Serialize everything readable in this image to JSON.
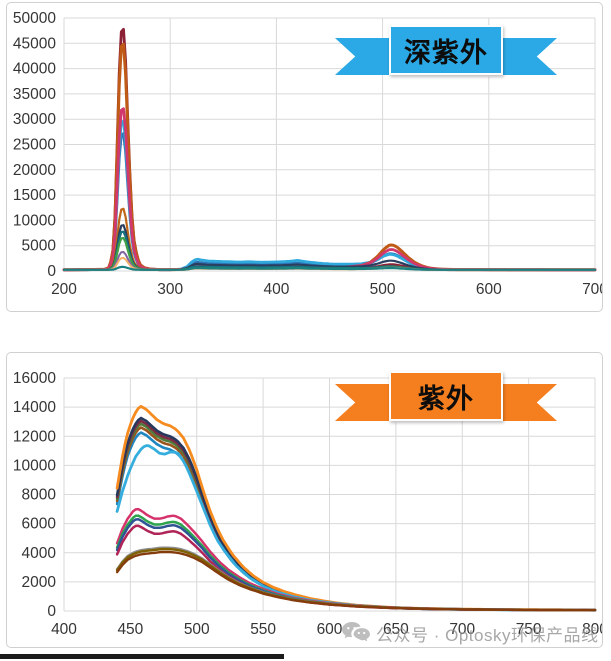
{
  "watermark": {
    "icon": "wechat-icon",
    "text": "公众号 · Optosky环保产品线"
  },
  "chart_data": [
    {
      "type": "line",
      "title": "深紫外",
      "banner": {
        "label": "深紫外",
        "color": "#2BA9E6"
      },
      "xlim": [
        200,
        700
      ],
      "ylim": [
        0,
        50000
      ],
      "xticks": [
        200,
        300,
        400,
        500,
        600,
        700
      ],
      "yticks": [
        0,
        5000,
        10000,
        15000,
        20000,
        25000,
        30000,
        35000,
        40000,
        45000,
        50000
      ],
      "grid": true,
      "legend": "none",
      "xstart": 200,
      "baseline": 230,
      "profiles": {
        "main": [
          [
            200,
            0
          ],
          [
            238,
            0.002
          ],
          [
            243,
            0.01
          ],
          [
            246,
            0.08
          ],
          [
            248,
            0.22
          ],
          [
            250,
            0.5
          ],
          [
            252,
            0.8
          ],
          [
            254,
            0.97
          ],
          [
            255,
            1
          ],
          [
            256,
            0.98
          ],
          [
            258,
            0.85
          ],
          [
            260,
            0.62
          ],
          [
            262,
            0.4
          ],
          [
            264,
            0.22
          ],
          [
            266,
            0.12
          ],
          [
            269,
            0.05
          ],
          [
            272,
            0.02
          ],
          [
            276,
            0.008
          ],
          [
            282,
            0.003
          ],
          [
            290,
            0.001
          ],
          [
            700,
            0
          ]
        ],
        "mid": [
          [
            300,
            0
          ],
          [
            310,
            0.05
          ],
          [
            316,
            0.3
          ],
          [
            321,
            0.8
          ],
          [
            325,
            1
          ],
          [
            330,
            0.9
          ],
          [
            336,
            0.82
          ],
          [
            345,
            0.78
          ],
          [
            355,
            0.75
          ],
          [
            365,
            0.72
          ],
          [
            375,
            0.75
          ],
          [
            385,
            0.7
          ],
          [
            395,
            0.72
          ],
          [
            405,
            0.75
          ],
          [
            413,
            0.8
          ],
          [
            420,
            0.88
          ],
          [
            425,
            0.8
          ],
          [
            432,
            0.7
          ],
          [
            440,
            0.62
          ],
          [
            450,
            0.55
          ],
          [
            460,
            0.5
          ],
          [
            470,
            0.45
          ],
          [
            480,
            0.42
          ],
          [
            490,
            0.4
          ],
          [
            500,
            0.35
          ],
          [
            510,
            0.25
          ],
          [
            520,
            0.15
          ],
          [
            535,
            0.06
          ],
          [
            550,
            0.02
          ],
          [
            700,
            0
          ]
        ],
        "tail": [
          [
            455,
            0
          ],
          [
            470,
            0.06
          ],
          [
            480,
            0.12
          ],
          [
            488,
            0.25
          ],
          [
            495,
            0.5
          ],
          [
            501,
            0.8
          ],
          [
            506,
            0.97
          ],
          [
            509,
            1
          ],
          [
            513,
            0.93
          ],
          [
            518,
            0.75
          ],
          [
            524,
            0.5
          ],
          [
            530,
            0.3
          ],
          [
            537,
            0.15
          ],
          [
            545,
            0.06
          ],
          [
            555,
            0.02
          ],
          [
            570,
            0.005
          ],
          [
            700,
            0
          ]
        ]
      },
      "series": [
        {
          "name": "steel-blue",
          "color": "#2E75B6",
          "width": 2.8,
          "components": {
            "main": 27500,
            "mid": 1500,
            "tail": 2800
          }
        },
        {
          "name": "cyan",
          "color": "#2FA8DC",
          "width": 2.8,
          "components": {
            "main": 30000,
            "mid": 2100,
            "tail": 2500
          }
        },
        {
          "name": "maroon",
          "color": "#8C2035",
          "width": 2.8,
          "components": {
            "main": 48500,
            "mid": 400,
            "tail": 900
          }
        },
        {
          "name": "brown-orange",
          "color": "#BF5B17",
          "width": 3.0,
          "components": {
            "main": 45500,
            "mid": 500,
            "tail": 4800
          }
        },
        {
          "name": "crimson",
          "color": "#D1386C",
          "width": 2.8,
          "components": {
            "main": 32500,
            "mid": 900,
            "tail": 3800
          }
        },
        {
          "name": "orange-mid",
          "color": "#C0681A",
          "width": 2.2,
          "components": {
            "main": 12300,
            "mid": 400,
            "tail": 600
          }
        },
        {
          "name": "dark-navy",
          "color": "#2A3F5F",
          "width": 2.2,
          "components": {
            "main": 9000,
            "mid": 1200,
            "tail": 1500
          }
        },
        {
          "name": "teal",
          "color": "#17707E",
          "width": 2.2,
          "components": {
            "main": 7700,
            "mid": 700,
            "tail": 500
          }
        },
        {
          "name": "green",
          "color": "#3FA047",
          "width": 2.2,
          "components": {
            "main": 6400,
            "mid": 350,
            "tail": 400
          }
        },
        {
          "name": "purple",
          "color": "#8064A2",
          "width": 2.0,
          "components": {
            "main": 3600,
            "mid": 300,
            "tail": 350
          }
        },
        {
          "name": "light-orange",
          "color": "#F6B26B",
          "width": 2.0,
          "components": {
            "main": 2400,
            "mid": 250,
            "tail": 300
          }
        },
        {
          "name": "flat-teal",
          "color": "#1B8080",
          "width": 2.2,
          "components": {
            "main": 600,
            "mid": 350,
            "tail": 250
          }
        }
      ]
    },
    {
      "type": "line",
      "title": "紫外",
      "banner": {
        "label": "紫外",
        "color": "#F57E1E"
      },
      "xlim": [
        400,
        800
      ],
      "ylim": [
        0,
        16000
      ],
      "xticks": [
        400,
        450,
        500,
        550,
        600,
        650,
        700,
        750,
        800
      ],
      "yticks": [
        0,
        2000,
        4000,
        6000,
        8000,
        10000,
        12000,
        14000,
        16000
      ],
      "grid": true,
      "legend": "none",
      "xstart": 440,
      "baseline": 0,
      "profiles": {
        "A": [
          [
            440,
            0.6
          ],
          [
            443,
            0.72
          ],
          [
            447,
            0.85
          ],
          [
            451,
            0.93
          ],
          [
            455,
            0.985
          ],
          [
            458,
            1
          ],
          [
            462,
            0.985
          ],
          [
            466,
            0.96
          ],
          [
            470,
            0.935
          ],
          [
            475,
            0.915
          ],
          [
            480,
            0.905
          ],
          [
            485,
            0.885
          ],
          [
            490,
            0.845
          ],
          [
            495,
            0.78
          ],
          [
            500,
            0.69
          ],
          [
            505,
            0.585
          ],
          [
            510,
            0.49
          ],
          [
            515,
            0.41
          ],
          [
            520,
            0.345
          ],
          [
            527,
            0.275
          ],
          [
            535,
            0.215
          ],
          [
            543,
            0.17
          ],
          [
            550,
            0.14
          ],
          [
            558,
            0.115
          ],
          [
            566,
            0.095
          ],
          [
            575,
            0.078
          ],
          [
            585,
            0.062
          ],
          [
            595,
            0.05
          ],
          [
            605,
            0.04
          ],
          [
            620,
            0.029
          ],
          [
            640,
            0.02
          ],
          [
            660,
            0.014
          ],
          [
            680,
            0.011
          ],
          [
            700,
            0.009
          ],
          [
            730,
            0.007
          ],
          [
            760,
            0.006
          ],
          [
            800,
            0.005
          ]
        ],
        "CY": [
          [
            440,
            0.6
          ],
          [
            444,
            0.72
          ],
          [
            449,
            0.84
          ],
          [
            454,
            0.93
          ],
          [
            459,
            0.985
          ],
          [
            463,
            1
          ],
          [
            468,
            0.975
          ],
          [
            472,
            0.95
          ],
          [
            476,
            0.945
          ],
          [
            481,
            0.96
          ],
          [
            486,
            0.95
          ],
          [
            491,
            0.89
          ],
          [
            496,
            0.8
          ],
          [
            501,
            0.7
          ],
          [
            506,
            0.6
          ],
          [
            511,
            0.5
          ],
          [
            516,
            0.42
          ],
          [
            522,
            0.35
          ],
          [
            530,
            0.27
          ],
          [
            540,
            0.2
          ],
          [
            550,
            0.15
          ],
          [
            560,
            0.115
          ],
          [
            572,
            0.088
          ],
          [
            585,
            0.066
          ],
          [
            600,
            0.05
          ],
          [
            620,
            0.033
          ],
          [
            645,
            0.021
          ],
          [
            670,
            0.014
          ],
          [
            700,
            0.01
          ],
          [
            740,
            0.007
          ],
          [
            800,
            0.005
          ]
        ],
        "B": [
          [
            440,
            0.66
          ],
          [
            444,
            0.8
          ],
          [
            448,
            0.9
          ],
          [
            452,
            0.97
          ],
          [
            455,
            1
          ],
          [
            459,
            0.97
          ],
          [
            463,
            0.93
          ],
          [
            468,
            0.9
          ],
          [
            473,
            0.9
          ],
          [
            478,
            0.92
          ],
          [
            483,
            0.93
          ],
          [
            488,
            0.9
          ],
          [
            493,
            0.84
          ],
          [
            498,
            0.77
          ],
          [
            504,
            0.68
          ],
          [
            510,
            0.58
          ],
          [
            517,
            0.48
          ],
          [
            524,
            0.4
          ],
          [
            532,
            0.33
          ],
          [
            540,
            0.27
          ],
          [
            550,
            0.215
          ],
          [
            560,
            0.17
          ],
          [
            572,
            0.13
          ],
          [
            585,
            0.1
          ],
          [
            600,
            0.075
          ],
          [
            620,
            0.052
          ],
          [
            645,
            0.035
          ],
          [
            670,
            0.025
          ],
          [
            700,
            0.018
          ],
          [
            740,
            0.013
          ],
          [
            800,
            0.01
          ]
        ],
        "C": [
          [
            440,
            0.66
          ],
          [
            444,
            0.78
          ],
          [
            448,
            0.87
          ],
          [
            453,
            0.93
          ],
          [
            458,
            0.96
          ],
          [
            463,
            0.975
          ],
          [
            468,
            0.985
          ],
          [
            473,
            1
          ],
          [
            478,
            1
          ],
          [
            483,
            0.995
          ],
          [
            488,
            0.975
          ],
          [
            493,
            0.945
          ],
          [
            498,
            0.9
          ],
          [
            504,
            0.83
          ],
          [
            510,
            0.74
          ],
          [
            517,
            0.63
          ],
          [
            524,
            0.53
          ],
          [
            532,
            0.44
          ],
          [
            540,
            0.37
          ],
          [
            550,
            0.295
          ],
          [
            560,
            0.24
          ],
          [
            572,
            0.185
          ],
          [
            585,
            0.145
          ],
          [
            600,
            0.11
          ],
          [
            620,
            0.078
          ],
          [
            645,
            0.053
          ],
          [
            670,
            0.038
          ],
          [
            700,
            0.027
          ],
          [
            740,
            0.019
          ],
          [
            800,
            0.014
          ]
        ]
      },
      "series": [
        {
          "name": "steel-blue",
          "color": "#1F86C0",
          "width": 2.6,
          "profile": "A",
          "peak": 12250
        },
        {
          "name": "brown",
          "color": "#99551C",
          "width": 2.6,
          "profile": "A",
          "peak": 12600
        },
        {
          "name": "dark-green",
          "color": "#4E7A3A",
          "width": 2.6,
          "profile": "A",
          "peak": 12850
        },
        {
          "name": "maroon",
          "color": "#7E2A45",
          "width": 2.6,
          "profile": "A",
          "peak": 13050
        },
        {
          "name": "dark-navy",
          "color": "#26385C",
          "width": 2.6,
          "profile": "A",
          "peak": 13250
        },
        {
          "name": "orange",
          "color": "#F68B1F",
          "width": 2.8,
          "profile": "A",
          "peak": 14050
        },
        {
          "name": "cyan",
          "color": "#35AEDD",
          "width": 2.8,
          "profile": "CY",
          "peak": 11400
        },
        {
          "name": "crimson",
          "color": "#D6336C",
          "width": 2.5,
          "profile": "B",
          "peak": 7050
        },
        {
          "name": "green",
          "color": "#2EA44F",
          "width": 2.5,
          "profile": "B",
          "peak": 6600
        },
        {
          "name": "dark-blue",
          "color": "#2F5496",
          "width": 2.5,
          "profile": "B",
          "peak": 6350
        },
        {
          "name": "crimson-2",
          "color": "#B02458",
          "width": 2.5,
          "profile": "B",
          "peak": 5900
        },
        {
          "name": "grey",
          "color": "#8C8C8C",
          "width": 2.4,
          "profile": "C",
          "peak": 4350
        },
        {
          "name": "olive",
          "color": "#7F6000",
          "width": 2.4,
          "profile": "C",
          "peak": 4250
        },
        {
          "name": "dark-brown",
          "color": "#843C0C",
          "width": 2.4,
          "profile": "C",
          "peak": 4050
        }
      ]
    }
  ]
}
